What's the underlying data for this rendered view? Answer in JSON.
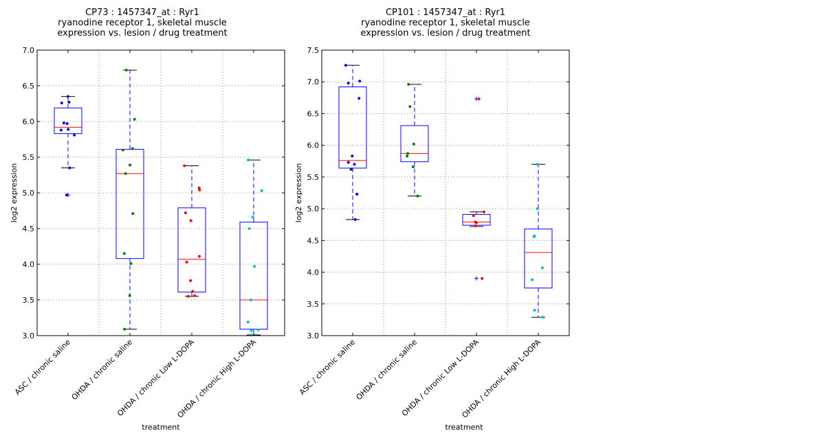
{
  "chart_data": [
    {
      "type": "box",
      "title_lines": [
        "CP73 : 1457347_at : Ryr1",
        "ryanodine receptor 1, skeletal muscle",
        "expression vs. lesion / drug treatment"
      ],
      "xlabel": "treatment",
      "ylabel": "log2 expression",
      "ylim": [
        3.0,
        7.0
      ],
      "yticks": [
        "3.0",
        "3.5",
        "4.0",
        "4.5",
        "5.0",
        "5.5",
        "6.0",
        "6.5",
        "7.0"
      ],
      "grid": true,
      "categories": [
        "ASC / chronic saline",
        "OHDA / chronic saline",
        "OHDA / chronic Low L-DOPA",
        "OHDA / chronic High L-DOPA"
      ],
      "series": [
        {
          "name": "ASC / chronic saline",
          "color": "#0000ff",
          "whisker_low": 5.35,
          "q1": 5.83,
          "median": 5.92,
          "q3": 6.19,
          "whisker_high": 6.35,
          "outliers": [
            4.97
          ],
          "points": [
            6.35,
            6.27,
            6.26,
            5.98,
            5.97,
            5.89,
            5.88,
            5.81,
            5.35,
            4.97
          ]
        },
        {
          "name": "OHDA / chronic saline",
          "color": "#008000",
          "whisker_low": 3.09,
          "q1": 4.08,
          "median": 5.27,
          "q3": 5.61,
          "whisker_high": 6.72,
          "outliers": [],
          "points": [
            6.72,
            6.03,
            5.62,
            5.6,
            5.39,
            5.27,
            4.71,
            4.15,
            4.01,
            3.56,
            3.09
          ]
        },
        {
          "name": "OHDA / chronic Low L-DOPA",
          "color": "#ff0000",
          "whisker_low": 3.55,
          "q1": 3.61,
          "median": 4.07,
          "q3": 4.79,
          "whisker_high": 5.38,
          "outliers": [],
          "points": [
            5.38,
            5.07,
            5.04,
            4.72,
            4.61,
            4.11,
            4.03,
            3.77,
            3.62,
            3.56,
            3.55
          ]
        },
        {
          "name": "OHDA / chronic High L-DOPA",
          "color": "#00bfbf",
          "whisker_low": 3.01,
          "q1": 3.09,
          "median": 3.5,
          "q3": 4.59,
          "whisker_high": 5.46,
          "outliers": [],
          "points": [
            5.46,
            5.03,
            4.66,
            4.5,
            3.97,
            3.5,
            3.19,
            3.08,
            3.07,
            3.01
          ]
        }
      ]
    },
    {
      "type": "box",
      "title_lines": [
        "CP101 : 1457347_at : Ryr1",
        "ryanodine receptor 1, skeletal muscle",
        "expression vs. lesion / drug treatment"
      ],
      "xlabel": "treatment",
      "ylabel": "log2 expression",
      "ylim": [
        3.0,
        7.5
      ],
      "yticks": [
        "3.0",
        "3.5",
        "4.0",
        "4.5",
        "5.0",
        "5.5",
        "6.0",
        "6.5",
        "7.0",
        "7.5"
      ],
      "grid": true,
      "categories": [
        "ASC / chronic saline",
        "OHDA / chronic saline",
        "OHDA / chronic Low L-DOPA",
        "OHDA / chronic High L-DOPA"
      ],
      "series": [
        {
          "name": "ASC / chronic saline",
          "color": "#0000ff",
          "whisker_low": 4.83,
          "q1": 5.64,
          "median": 5.76,
          "q3": 6.92,
          "whisker_high": 7.26,
          "outliers": [],
          "points": [
            7.26,
            7.01,
            6.98,
            6.74,
            5.83,
            5.73,
            5.7,
            5.62,
            5.23,
            4.83
          ]
        },
        {
          "name": "OHDA / chronic saline",
          "color": "#008000",
          "whisker_low": 5.2,
          "q1": 5.74,
          "median": 5.87,
          "q3": 6.31,
          "whisker_high": 6.96,
          "outliers": [],
          "points": [
            6.96,
            6.61,
            6.02,
            5.87,
            5.83,
            5.66,
            5.2
          ]
        },
        {
          "name": "OHDA / chronic Low L-DOPA",
          "color": "#ff0000",
          "whisker_low": 4.72,
          "q1": 4.74,
          "median": 4.79,
          "q3": 4.91,
          "whisker_high": 4.95,
          "outliers": [
            6.73,
            3.9
          ],
          "points": [
            6.73,
            4.95,
            4.89,
            4.79,
            4.78,
            4.73,
            3.9
          ]
        },
        {
          "name": "OHDA / chronic High L-DOPA",
          "color": "#00bfbf",
          "whisker_low": 3.29,
          "q1": 3.75,
          "median": 4.31,
          "q3": 4.68,
          "whisker_high": 5.7,
          "outliers": [],
          "points": [
            5.7,
            5.0,
            4.57,
            4.56,
            4.07,
            3.88,
            3.4,
            3.29
          ]
        }
      ]
    }
  ]
}
